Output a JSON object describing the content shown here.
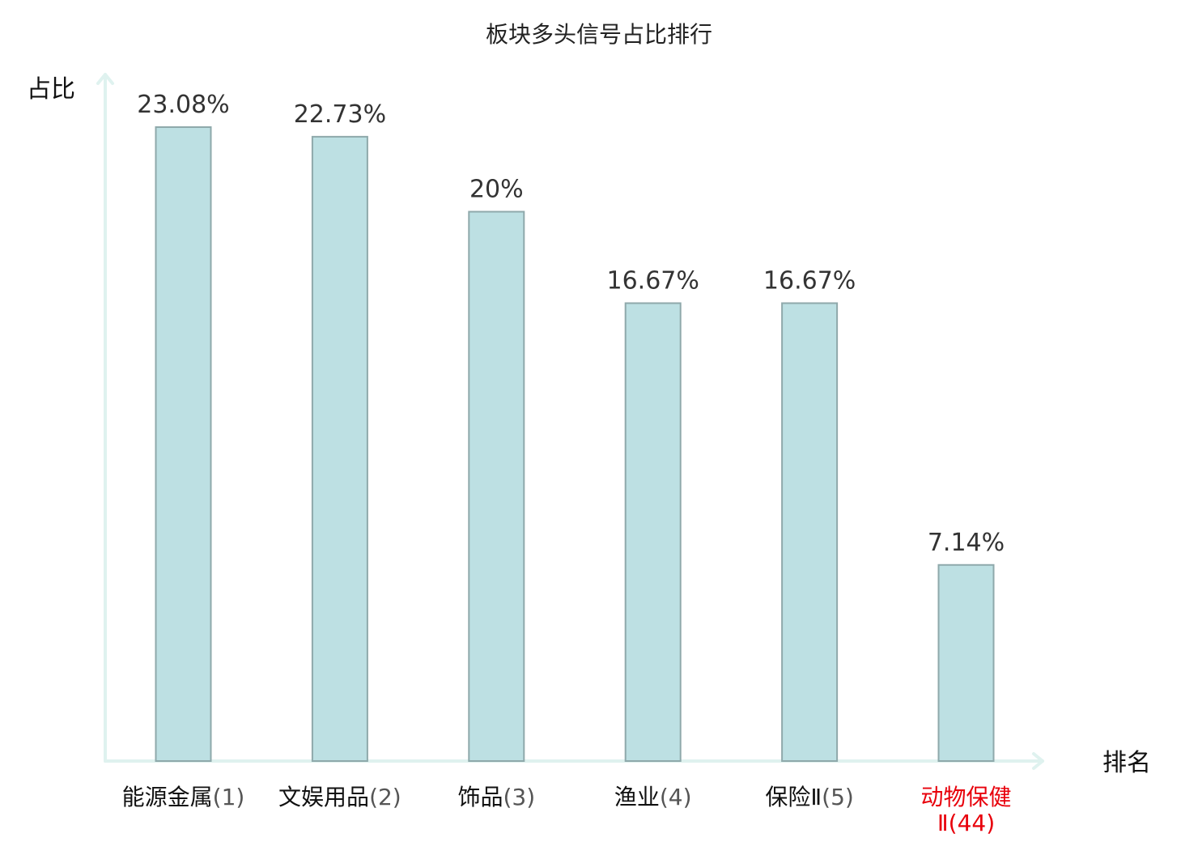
{
  "chart_data": {
    "type": "bar",
    "title": "板块多头信号占比排行",
    "ylabel": "占比",
    "xlabel": "排名",
    "ylim": [
      0,
      25
    ],
    "grid": false,
    "categories": [
      {
        "name": "能源金属",
        "rank": "(1)",
        "highlight": false
      },
      {
        "name": "文娱用品",
        "rank": "(2)",
        "highlight": false
      },
      {
        "name": "饰品",
        "rank": "(3)",
        "highlight": false
      },
      {
        "name": "渔业",
        "rank": "(4)",
        "highlight": false
      },
      {
        "name": "保险Ⅱ",
        "rank": "(5)",
        "highlight": false
      },
      {
        "name": "动物保健",
        "rank": "Ⅱ(44)",
        "highlight": true
      }
    ],
    "values": [
      23.08,
      22.73,
      20,
      16.67,
      16.67,
      7.14
    ],
    "value_labels": [
      "23.08%",
      "22.73%",
      "20%",
      "16.67%",
      "16.67%",
      "7.14%"
    ]
  },
  "colors": {
    "bar_fill": "#bde0e3",
    "bar_stroke": "#8fa9ab",
    "axis": "#dff2ef",
    "text": "#111111",
    "rank_text": "#555555",
    "highlight": "#e8000b"
  }
}
